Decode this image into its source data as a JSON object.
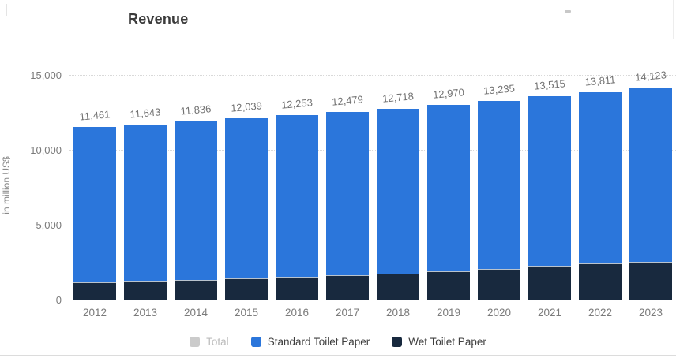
{
  "page": {
    "title": "Revenue"
  },
  "y_axis": {
    "label": "in million US$",
    "ticks": [
      "15,000",
      "10,000",
      "5,000",
      "0"
    ]
  },
  "chart_data": {
    "type": "bar",
    "stacked": true,
    "title": "Revenue",
    "ylabel": "in million US$",
    "ylim": [
      0,
      15000
    ],
    "grid": "horizontal-dotted",
    "legend_position": "bottom",
    "categories": [
      "2012",
      "2013",
      "2014",
      "2015",
      "2016",
      "2017",
      "2018",
      "2019",
      "2020",
      "2021",
      "2022",
      "2023"
    ],
    "series": [
      {
        "name": "Standard Toilet Paper",
        "color": "#2b76db",
        "values": [
          10311,
          10388,
          10516,
          10639,
          10733,
          10849,
          10998,
          11090,
          11185,
          11265,
          11401,
          11603
        ]
      },
      {
        "name": "Wet Toilet Paper",
        "color": "#18293e",
        "values": [
          1150,
          1255,
          1320,
          1400,
          1520,
          1630,
          1720,
          1880,
          2050,
          2250,
          2410,
          2520
        ]
      }
    ],
    "totals": [
      11461,
      11643,
      11836,
      12039,
      12253,
      12479,
      12718,
      12970,
      13235,
      13515,
      13811,
      14123
    ],
    "total_labels": [
      "11,461",
      "11,643",
      "11,836",
      "12,039",
      "12,253",
      "12,479",
      "12,718",
      "12,970",
      "13,235",
      "13,515",
      "13,811",
      "14,123"
    ]
  },
  "legend": {
    "items": [
      {
        "label": "Total",
        "color": "#cbcbcb",
        "disabled": true
      },
      {
        "label": "Standard Toilet Paper",
        "color": "#2b76db",
        "disabled": false
      },
      {
        "label": "Wet Toilet Paper",
        "color": "#18293e",
        "disabled": false
      }
    ]
  }
}
